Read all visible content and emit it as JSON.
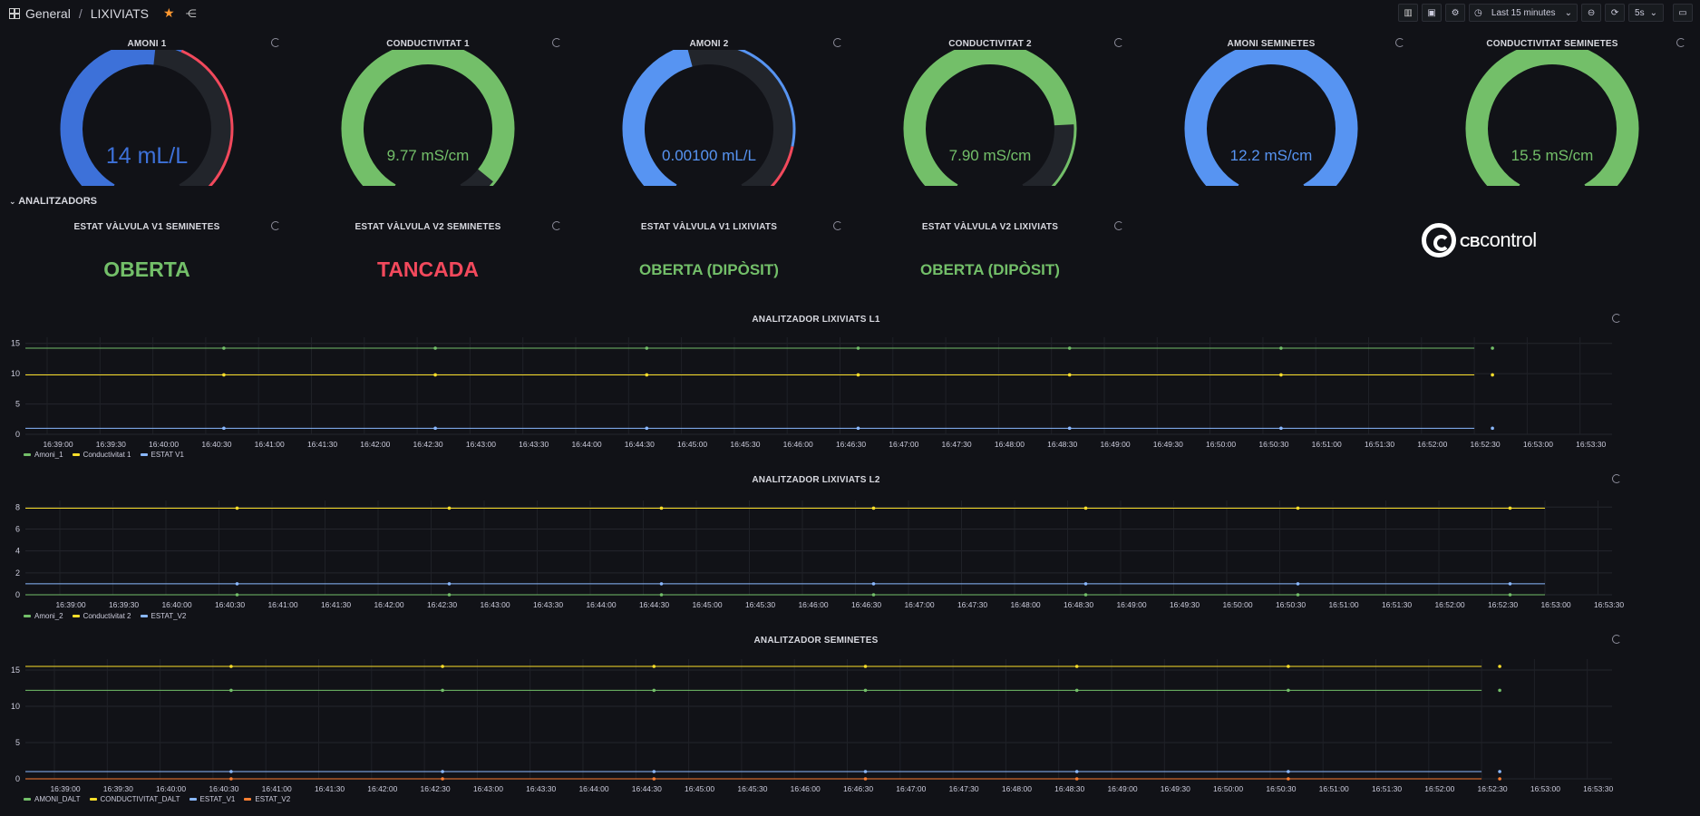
{
  "header": {
    "breadcrumb_root": "General",
    "breadcrumb_sep": "/",
    "breadcrumb_page": "LIXIVIATS",
    "time_range": "Last 15 minutes",
    "refresh_interval": "5s"
  },
  "gauges": [
    {
      "title": "AMONI 1",
      "value": "14 mL/L",
      "fraction": 0.52,
      "color": "#3d71d9",
      "text_color": "#3d71d9",
      "threshold_start": 0.58
    },
    {
      "title": "CONDUCTIVITAT 1",
      "value": "9.77 mS/cm",
      "fraction": 0.93,
      "color": "#73bf69",
      "text_color": "#73bf69",
      "threshold_start": null
    },
    {
      "title": "AMONI 2",
      "value": "0.00100 mL/L",
      "fraction": 0.45,
      "color": "#5794f2",
      "text_color": "#5794f2",
      "threshold_start": 0.84
    },
    {
      "title": "CONDUCTIVITAT 2",
      "value": "7.90 mS/cm",
      "fraction": 0.79,
      "color": "#73bf69",
      "text_color": "#73bf69",
      "threshold_start": null
    },
    {
      "title": "AMONI SEMINETES",
      "value": "12.2 mS/cm",
      "fraction": 1.0,
      "color": "#5794f2",
      "text_color": "#5794f2",
      "threshold_start": null
    },
    {
      "title": "CONDUCTIVITAT SEMINETES",
      "value": "15.5 mS/cm",
      "fraction": 1.0,
      "color": "#73bf69",
      "text_color": "#73bf69",
      "threshold_start": null
    }
  ],
  "section": {
    "label": "ANALITZADORS"
  },
  "states": [
    {
      "title": "ESTAT VÀLVULA V1 SEMINETES",
      "value": "OBERTA",
      "color": "#73bf69"
    },
    {
      "title": "ESTAT VÀLVULA V2 SEMINETES",
      "value": "TANCADA",
      "color": "#f2495c"
    },
    {
      "title": "ESTAT VÀLVULA V1 LIXIVIATS",
      "value": "OBERTA (DIPÒSIT)",
      "color": "#73bf69"
    },
    {
      "title": "ESTAT VÀLVULA V2 LIXIVIATS",
      "value": "OBERTA (DIPÒSIT)",
      "color": "#73bf69"
    }
  ],
  "logo": {
    "brand_a": "CB",
    "brand_b": "control"
  },
  "chart_data": [
    {
      "type": "line",
      "title": "ANALITZADOR LIXIVIATS L1",
      "yticks": [
        0,
        5,
        10,
        15
      ],
      "ylim": [
        0,
        16
      ],
      "x": [
        "16:39:00",
        "16:39:30",
        "16:40:00",
        "16:40:30",
        "16:41:00",
        "16:41:30",
        "16:42:00",
        "16:42:30",
        "16:43:00",
        "16:43:30",
        "16:44:00",
        "16:44:30",
        "16:45:00",
        "16:45:30",
        "16:46:00",
        "16:46:30",
        "16:47:00",
        "16:47:30",
        "16:48:00",
        "16:48:30",
        "16:49:00",
        "16:49:30",
        "16:50:00",
        "16:50:30",
        "16:51:00",
        "16:51:30",
        "16:52:00",
        "16:52:30",
        "16:53:00",
        "16:53:30"
      ],
      "series": [
        {
          "name": "Amoni_1",
          "color": "#73bf69",
          "value": 14.2,
          "end_index": 27
        },
        {
          "name": "Conductivitat 1",
          "color": "#fade2a",
          "value": 9.8,
          "end_index": 27
        },
        {
          "name": "ESTAT V1",
          "color": "#8ab8ff",
          "value": 1,
          "end_index": 27
        }
      ]
    },
    {
      "type": "line",
      "title": "ANALITZADOR LIXIVIATS L2",
      "yticks": [
        0,
        2,
        4,
        6,
        8
      ],
      "ylim": [
        0,
        8.6
      ],
      "x": [
        "16:39:00",
        "16:39:30",
        "16:40:00",
        "16:40:30",
        "16:41:00",
        "16:41:30",
        "16:42:00",
        "16:42:30",
        "16:43:00",
        "16:43:30",
        "16:44:00",
        "16:44:30",
        "16:45:00",
        "16:45:30",
        "16:46:00",
        "16:46:30",
        "16:47:00",
        "16:47:30",
        "16:48:00",
        "16:48:30",
        "16:49:00",
        "16:49:30",
        "16:50:00",
        "16:50:30",
        "16:51:00",
        "16:51:30",
        "16:52:00",
        "16:52:30",
        "16:53:00",
        "16:53:30"
      ],
      "series": [
        {
          "name": "Amoni_2",
          "color": "#73bf69",
          "value": 0,
          "end_index": 28
        },
        {
          "name": "Conductivitat 2",
          "color": "#fade2a",
          "value": 7.9,
          "end_index": 28
        },
        {
          "name": "ESTAT_V2",
          "color": "#8ab8ff",
          "value": 1,
          "end_index": 28
        }
      ]
    },
    {
      "type": "line",
      "title": "ANALITZADOR SEMINETES",
      "yticks": [
        0,
        5,
        10,
        15
      ],
      "ylim": [
        0,
        16.5
      ],
      "x": [
        "16:39:00",
        "16:39:30",
        "16:40:00",
        "16:40:30",
        "16:41:00",
        "16:41:30",
        "16:42:00",
        "16:42:30",
        "16:43:00",
        "16:43:30",
        "16:44:00",
        "16:44:30",
        "16:45:00",
        "16:45:30",
        "16:46:00",
        "16:46:30",
        "16:47:00",
        "16:47:30",
        "16:48:00",
        "16:48:30",
        "16:49:00",
        "16:49:30",
        "16:50:00",
        "16:50:30",
        "16:51:00",
        "16:51:30",
        "16:52:00",
        "16:52:30",
        "16:53:00",
        "16:53:30"
      ],
      "series": [
        {
          "name": "AMONI_DALT",
          "color": "#73bf69",
          "value": 12.2,
          "end_index": 27
        },
        {
          "name": "CONDUCTIVITAT_DALT",
          "color": "#fade2a",
          "value": 15.5,
          "end_index": 27
        },
        {
          "name": "ESTAT_V1",
          "color": "#8ab8ff",
          "value": 1,
          "end_index": 27
        },
        {
          "name": "ESTAT_V2",
          "color": "#ff7f32",
          "value": 0,
          "end_index": 27
        }
      ]
    }
  ]
}
